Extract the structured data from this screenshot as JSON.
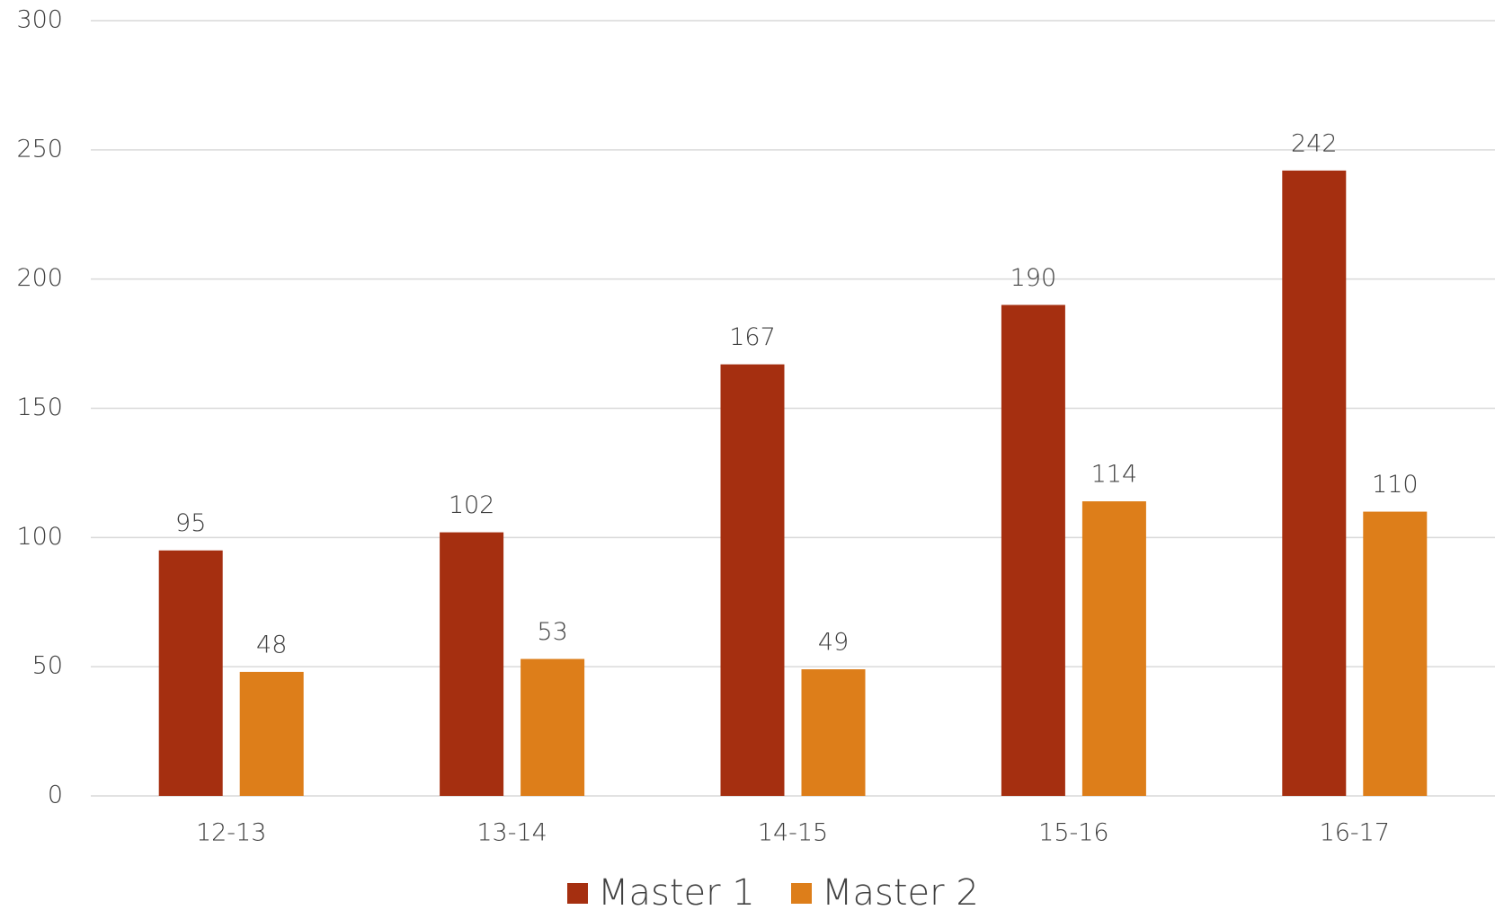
{
  "chart_data": {
    "type": "bar",
    "categories": [
      "12-13",
      "13-14",
      "14-15",
      "15-16",
      "16-17"
    ],
    "series": [
      {
        "name": "Master 1",
        "color": "#a52f10",
        "values": [
          95,
          102,
          167,
          190,
          242
        ]
      },
      {
        "name": "Master 2",
        "color": "#dd7e1a",
        "values": [
          48,
          53,
          49,
          114,
          110
        ]
      }
    ],
    "ylim": [
      0,
      300
    ],
    "yticks": [
      0,
      50,
      100,
      150,
      200,
      250,
      300
    ],
    "grid": true,
    "legend": "bottom"
  }
}
